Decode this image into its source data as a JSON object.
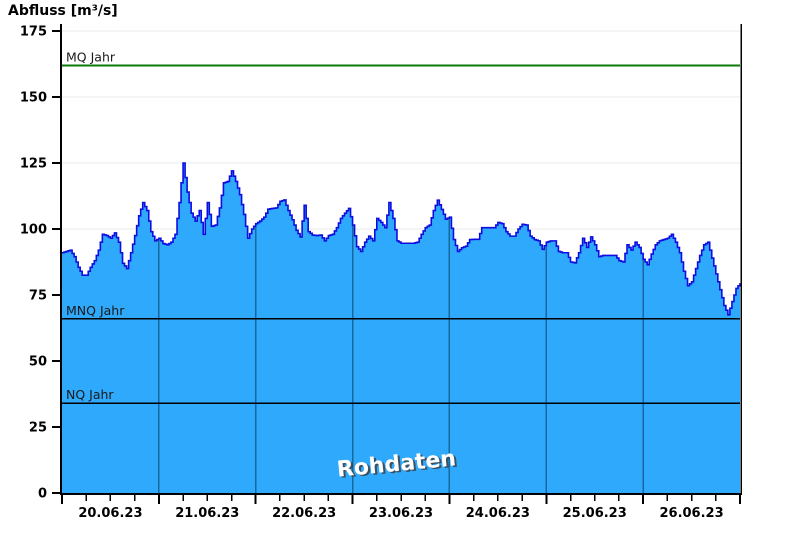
{
  "chart_data": {
    "type": "area",
    "title": "Abfluss [m³/s]",
    "watermark": "Rohdaten",
    "x_tick_labels": [
      "20.06.23",
      "21.06.23",
      "22.06.23",
      "23.06.23",
      "24.06.23",
      "25.06.23",
      "26.06.23"
    ],
    "x_interval_hours": 1,
    "y_ticks": [
      0,
      25,
      50,
      75,
      100,
      125,
      150,
      175
    ],
    "y_tick_labels": [
      "0",
      "25",
      "50",
      "75",
      "100",
      "125",
      "150",
      "175"
    ],
    "ylim": [
      0,
      178
    ],
    "grid": {
      "horizontal": true,
      "vertical_day_lines": true
    },
    "legend_position": "none",
    "reference_lines": [
      {
        "label": "MQ Jahr",
        "value": 162,
        "color": "#0a7a0a",
        "width": 2
      },
      {
        "label": "MNQ Jahr",
        "value": 66,
        "color": "#000000",
        "width": 1.3
      },
      {
        "label": "NQ Jahr",
        "value": 34,
        "color": "#000000",
        "width": 1.3
      }
    ],
    "series": [
      {
        "name": "Abfluss",
        "unit": "m³/s",
        "values": [
          91,
          91.5,
          92,
          89.5,
          85.5,
          82.5,
          82.5,
          85.5,
          88,
          92,
          98,
          97.5,
          96.5,
          98.5,
          95,
          87,
          85,
          91,
          97.5,
          105,
          110,
          107,
          99,
          95.5,
          96.5,
          94.5,
          94,
          95,
          98,
          110,
          125,
          114,
          106,
          103,
          107,
          98,
          110,
          101,
          101.5,
          108,
          117.5,
          118,
          122,
          118,
          113,
          105.5,
          96.5,
          100,
          102,
          103,
          104.5,
          107.5,
          107.8,
          108,
          110.5,
          111,
          107,
          103.5,
          99.5,
          97,
          109,
          99,
          97.7,
          97.5,
          97.7,
          95.5,
          97.5,
          98,
          100.5,
          104,
          106,
          107.8,
          101.5,
          93.3,
          91.5,
          95,
          97.3,
          95.5,
          104,
          102.5,
          100.5,
          110,
          104,
          95.5,
          94.6,
          94.6,
          94.6,
          94.6,
          95,
          98,
          100.5,
          101.5,
          107,
          110.9,
          107.4,
          103.7,
          104.5,
          96,
          91.5,
          92.9,
          93.5,
          96,
          96.1,
          96.1,
          100.5,
          100.5,
          100.5,
          100.5,
          102.5,
          102,
          99,
          97.3,
          97.3,
          100,
          101.8,
          101.5,
          97.3,
          96,
          95.5,
          92.3,
          95,
          95.5,
          95.5,
          91.5,
          91,
          91,
          87.5,
          87.2,
          91,
          96.5,
          93,
          97,
          94,
          89.5,
          90,
          90,
          90,
          90,
          88,
          87.5,
          94,
          92,
          95,
          93,
          88.5,
          86.5,
          90.5,
          94,
          95.5,
          96,
          96.5,
          98,
          95,
          91,
          84,
          78.5,
          80,
          85,
          90,
          94,
          95,
          89,
          83,
          77,
          71,
          67.5,
          72.5,
          77.5,
          79.5
        ]
      }
    ],
    "colors": {
      "fill": "#2fa9fc",
      "line": "#0d0de0",
      "day_grid_on_fill": "#17689f",
      "h_grid": "#ebebeb",
      "axis": "#000000",
      "watermark_text": "#ffffff",
      "watermark_shadow": "#3c3c3c",
      "ref_label_text": "#1a1a1a"
    }
  }
}
